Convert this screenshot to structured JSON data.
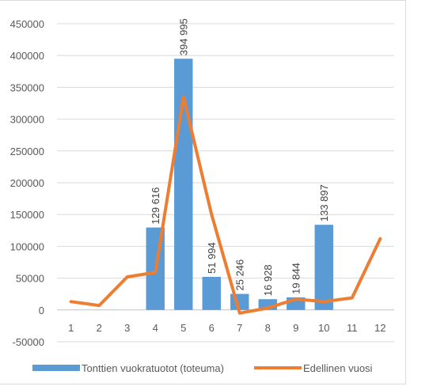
{
  "chart_data": {
    "type": "bar",
    "categories": [
      "1",
      "2",
      "3",
      "4",
      "5",
      "6",
      "7",
      "8",
      "9",
      "10",
      "11",
      "12"
    ],
    "series": [
      {
        "name": "Tonttien vuokratuotot (toteuma)",
        "type": "bar",
        "color": "#5b9bd5",
        "values": [
          null,
          null,
          null,
          129616,
          394995,
          51994,
          25246,
          16928,
          19844,
          133897,
          null,
          null
        ],
        "labels": [
          "",
          "",
          "",
          "129 616",
          "394 995",
          "51 994",
          "25 246",
          "16 928",
          "19 844",
          "133 897",
          "",
          ""
        ]
      },
      {
        "name": "Edellinen vuosi",
        "type": "line",
        "color": "#ed7d31",
        "values": [
          13000,
          7000,
          52000,
          59000,
          335000,
          150000,
          -5000,
          3000,
          17000,
          13000,
          19000,
          112000
        ]
      }
    ],
    "yticks": [
      -50000,
      0,
      50000,
      100000,
      150000,
      200000,
      250000,
      300000,
      350000,
      400000,
      450000
    ],
    "ylim": [
      -50000,
      450000
    ],
    "grid": true,
    "legend": "bottom"
  }
}
